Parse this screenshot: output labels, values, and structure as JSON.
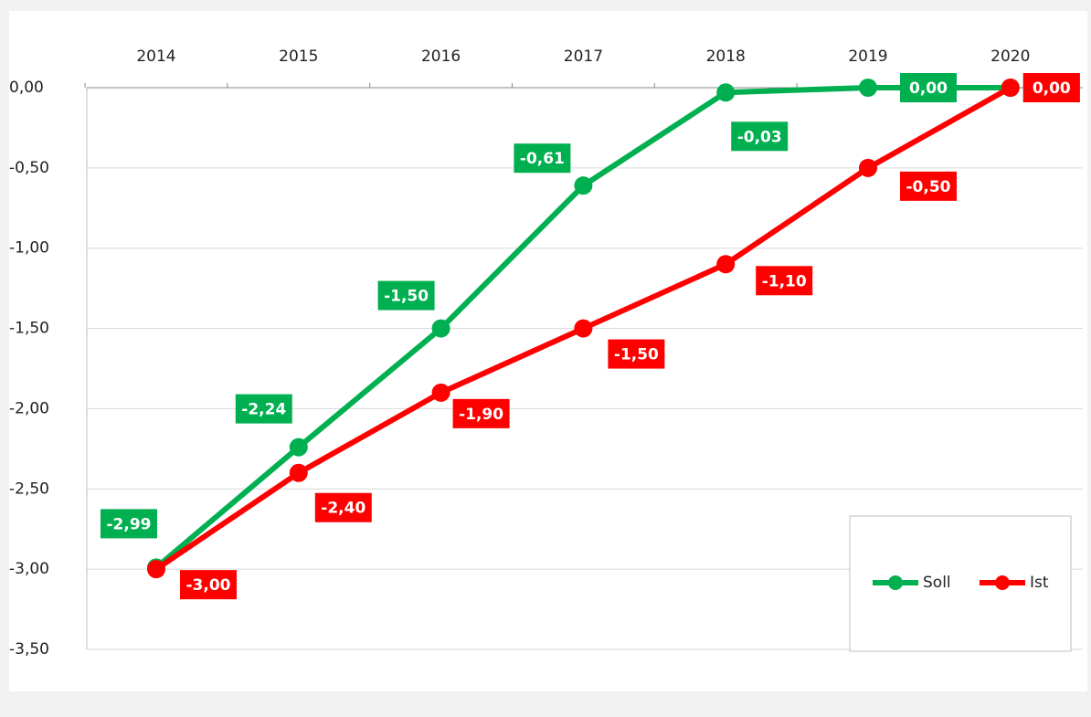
{
  "chart_data": {
    "type": "line",
    "categories": [
      "2014",
      "2015",
      "2016",
      "2017",
      "2018",
      "2019",
      "2020"
    ],
    "series": [
      {
        "name": "Soll",
        "color": "#00b050",
        "values": [
          -2.99,
          -2.24,
          -1.5,
          -0.61,
          -0.03,
          0,
          0
        ],
        "value_labels": [
          "-2,99",
          "-2,24",
          "-1,50",
          "-0,61",
          "-0,03",
          "0,00",
          "0,00"
        ]
      },
      {
        "name": "Ist",
        "color": "#ff0000",
        "values": [
          -3,
          -2.4,
          -1.9,
          -1.5,
          -1.1,
          -0.5,
          0
        ],
        "value_labels": [
          "-3,00",
          "-2,40",
          "-1,90",
          "-1,50",
          "-1,10",
          "-0,50",
          "0,00"
        ]
      }
    ],
    "ylim": [
      -3.5,
      0
    ],
    "yticks": [
      {
        "value": 0,
        "label": "0,00"
      },
      {
        "value": -0.5,
        "label": "-0,50"
      },
      {
        "value": -1,
        "label": "-1,00"
      },
      {
        "value": -1.5,
        "label": "-1,50"
      },
      {
        "value": -2,
        "label": "-2,00"
      },
      {
        "value": -2.5,
        "label": "-2,50"
      },
      {
        "value": -3,
        "label": "-3,00"
      },
      {
        "value": -3.5,
        "label": "-3,50"
      }
    ],
    "grid": true,
    "legend": "bottom-right"
  }
}
